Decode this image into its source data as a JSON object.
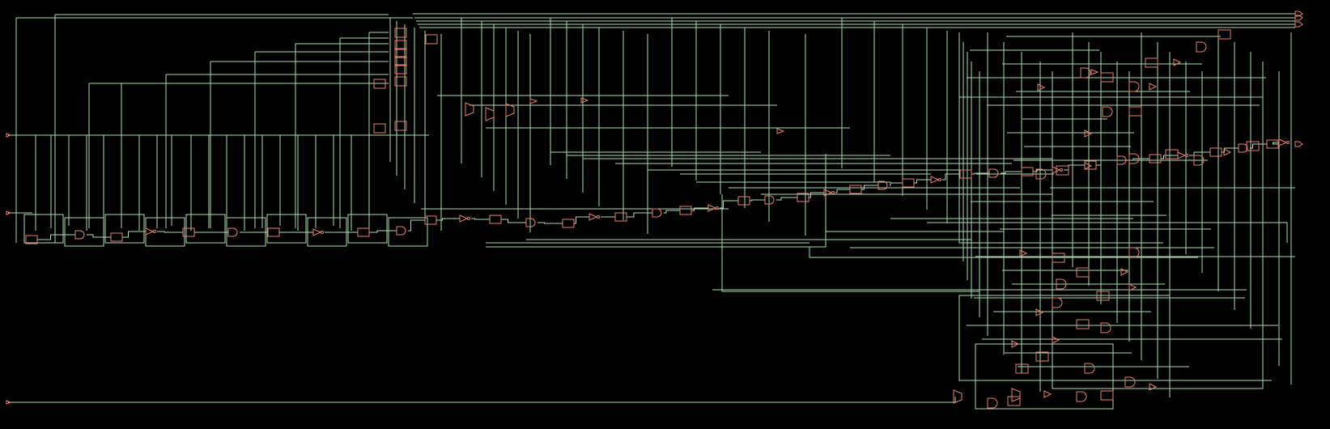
{
  "view": "netlist-schematic",
  "colors": {
    "background": "#000000",
    "wire": "#a8dcb0",
    "cell": "#e8806a"
  },
  "ports": {
    "inputs": 3,
    "outputs": 4
  },
  "cell_types": [
    "register",
    "lut",
    "and-gate",
    "mux",
    "buffer",
    "inverter"
  ]
}
